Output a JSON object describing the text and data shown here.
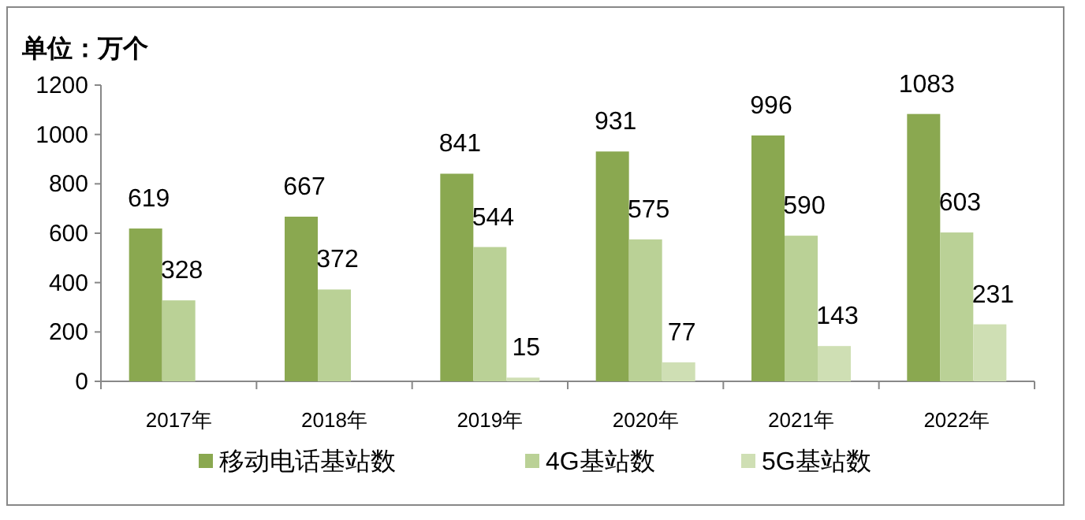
{
  "chart_data": {
    "type": "bar",
    "title": "单位：万个",
    "categories": [
      "2017年",
      "2018年",
      "2019年",
      "2020年",
      "2021年",
      "2022年"
    ],
    "series": [
      {
        "name": "移动电话基站数",
        "color": "#8aa850",
        "values": [
          619,
          667,
          841,
          931,
          996,
          1083
        ]
      },
      {
        "name": "4G基站数",
        "color": "#bad196",
        "values": [
          328,
          372,
          544,
          575,
          590,
          603
        ]
      },
      {
        "name": "5G基站数",
        "color": "#cfdfb4",
        "values": [
          null,
          null,
          15,
          77,
          143,
          231
        ]
      }
    ],
    "ylim": [
      0,
      1200
    ],
    "yticks": [
      0,
      200,
      400,
      600,
      800,
      1000,
      1200
    ],
    "data_labels": true,
    "grid": false,
    "legend": "bottom"
  }
}
